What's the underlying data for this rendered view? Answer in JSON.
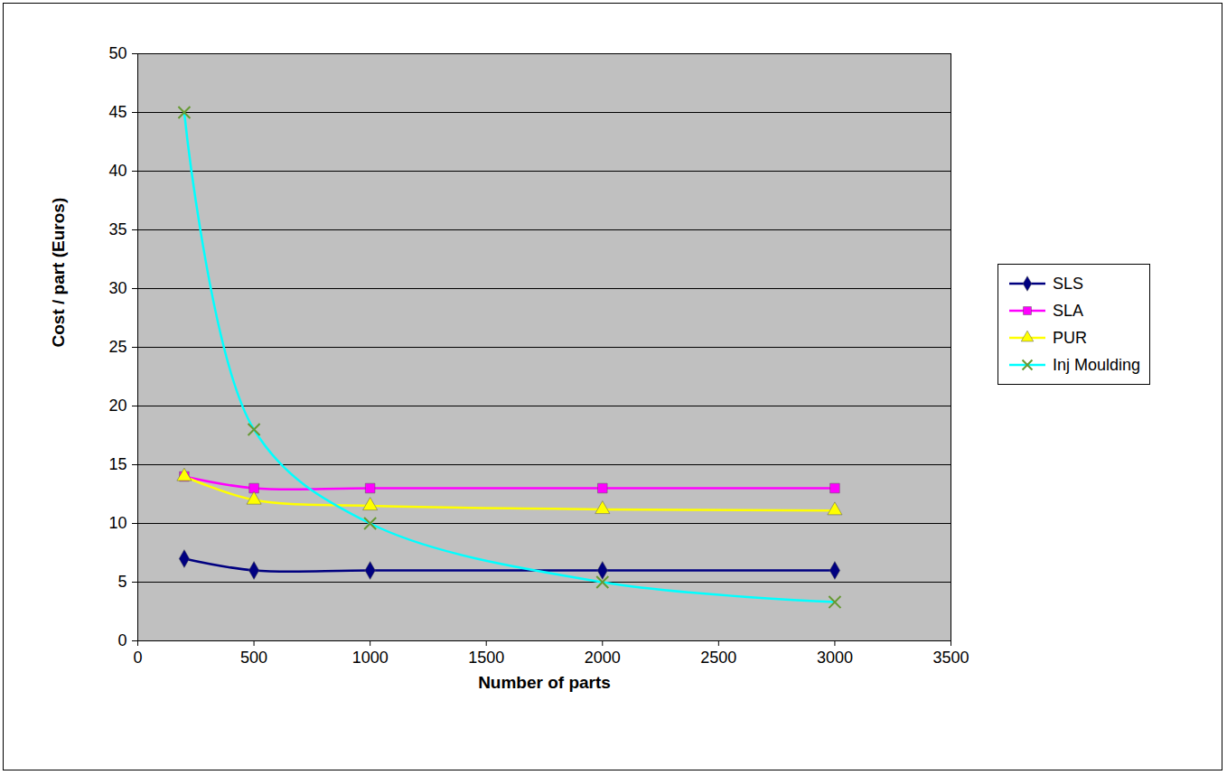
{
  "chart_data": {
    "type": "line",
    "x_label": "Number of parts",
    "y_label": "Cost / part (Euros)",
    "x": [
      200,
      500,
      1000,
      2000,
      3000
    ],
    "series": [
      {
        "name": "SLS",
        "color": "#000080",
        "marker": "diamond",
        "values": [
          7,
          6,
          6,
          6,
          6
        ]
      },
      {
        "name": "SLA",
        "color": "#ff00ff",
        "marker": "square",
        "values": [
          14,
          13,
          13,
          13,
          13
        ]
      },
      {
        "name": "PUR",
        "color": "#ffff00",
        "marker": "triangle",
        "values": [
          14,
          12,
          11.5,
          11.2,
          11.1
        ]
      },
      {
        "name": "Inj Moulding",
        "color": "#00ffff",
        "marker": "x",
        "values": [
          45,
          18,
          10,
          5,
          3.3
        ]
      }
    ],
    "xlim": [
      0,
      3500
    ],
    "xticks": [
      0,
      500,
      1000,
      1500,
      2000,
      2500,
      3000,
      3500
    ],
    "ylim": [
      0,
      50
    ],
    "yticks": [
      0,
      5,
      10,
      15,
      20,
      25,
      30,
      35,
      40,
      45,
      50
    ],
    "grid": true,
    "legend": "right"
  }
}
